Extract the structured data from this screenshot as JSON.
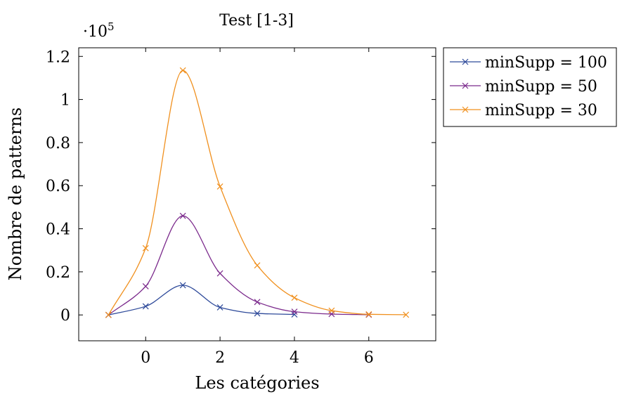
{
  "chart_data": {
    "type": "line",
    "title": "Test [1-3]",
    "xlabel": "Les catégories",
    "ylabel": "Nombre de patterns",
    "y_scale_label": "·10",
    "y_scale_exponent": "5",
    "xlim": [
      -1.8,
      7.8
    ],
    "ylim": [
      -0.12,
      1.24
    ],
    "x_ticks": [
      0,
      2,
      4,
      6
    ],
    "x_tick_labels": [
      "0",
      "2",
      "4",
      "6"
    ],
    "y_ticks": [
      0,
      0.2,
      0.4,
      0.6,
      0.8,
      1.0,
      1.2
    ],
    "y_tick_labels": [
      "0",
      "0.2",
      "0.4",
      "0.6",
      "0.8",
      "1",
      "1.2"
    ],
    "grid": false,
    "legend_position": "outside-right",
    "series": [
      {
        "name": "minSupp = 100",
        "color": "#2e4a9a",
        "x": [
          -1,
          0,
          1,
          2,
          3,
          4
        ],
        "y": [
          0.0,
          0.04,
          0.138,
          0.035,
          0.007,
          0.002
        ]
      },
      {
        "name": "minSupp = 50",
        "color": "#7b2a8c",
        "x": [
          -1,
          0,
          1,
          2,
          3,
          4,
          5,
          6
        ],
        "y": [
          0.0,
          0.133,
          0.46,
          0.193,
          0.06,
          0.015,
          0.004,
          0.001
        ]
      },
      {
        "name": "minSupp = 30",
        "color": "#f0901e",
        "x": [
          -1,
          0,
          1,
          2,
          3,
          4,
          5,
          6,
          7
        ],
        "y": [
          0.0,
          0.31,
          1.135,
          0.596,
          0.23,
          0.08,
          0.02,
          0.003,
          0.001
        ]
      }
    ]
  }
}
